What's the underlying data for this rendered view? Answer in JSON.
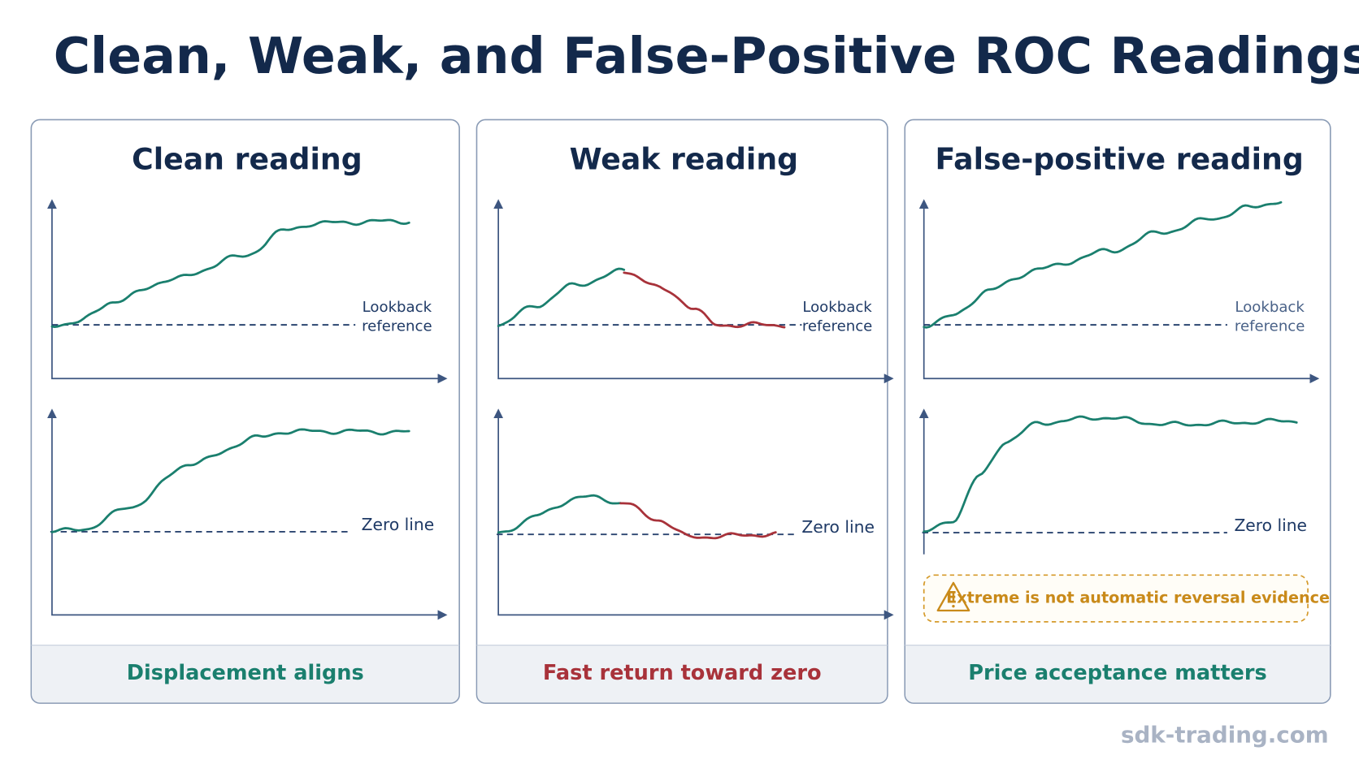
{
  "title": "Clean, Weak, and False-Positive ROC Readings",
  "panels": [
    {
      "title": "Clean reading",
      "top_label_lines": [
        "Lookback",
        "reference"
      ],
      "bottom_label": "Zero line",
      "footer": "Displacement aligns"
    },
    {
      "title": "Weak reading",
      "top_label_lines": [
        "Lookback",
        "reference"
      ],
      "bottom_label": "Zero line",
      "footer": "Fast return toward zero"
    },
    {
      "title": "False-positive reading",
      "top_label_lines": [
        "Lookback",
        "reference"
      ],
      "bottom_label": "Zero line",
      "footer": "Price acceptance matters"
    }
  ],
  "warning": "Extreme is not automatic reversal evidence",
  "watermark": "sdk-trading.com"
}
